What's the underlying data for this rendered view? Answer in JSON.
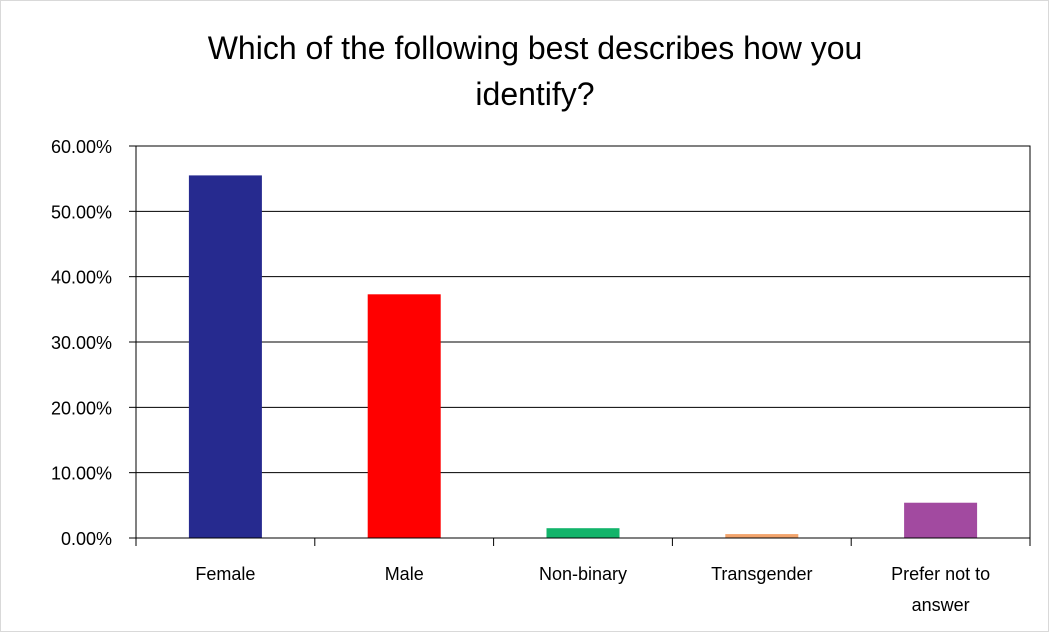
{
  "chart_data": {
    "type": "bar",
    "title": "Which of the following best describes how you identify?",
    "xlabel": "",
    "ylabel": "",
    "categories": [
      "Female",
      "Male",
      "Non-binary",
      "Transgender",
      "Prefer not to answer"
    ],
    "values": [
      0.555,
      0.373,
      0.015,
      0.006,
      0.054
    ],
    "colors": [
      "#262a8f",
      "#ff0000",
      "#12b46a",
      "#f2a46c",
      "#a24aa0"
    ],
    "ylim": [
      0,
      0.6
    ],
    "yticks": [
      0,
      0.1,
      0.2,
      0.3,
      0.4,
      0.5,
      0.6
    ],
    "ytick_labels": [
      "0.00%",
      "10.00%",
      "20.00%",
      "30.00%",
      "40.00%",
      "50.00%",
      "60.00%"
    ],
    "grid": true,
    "legend": "none"
  }
}
